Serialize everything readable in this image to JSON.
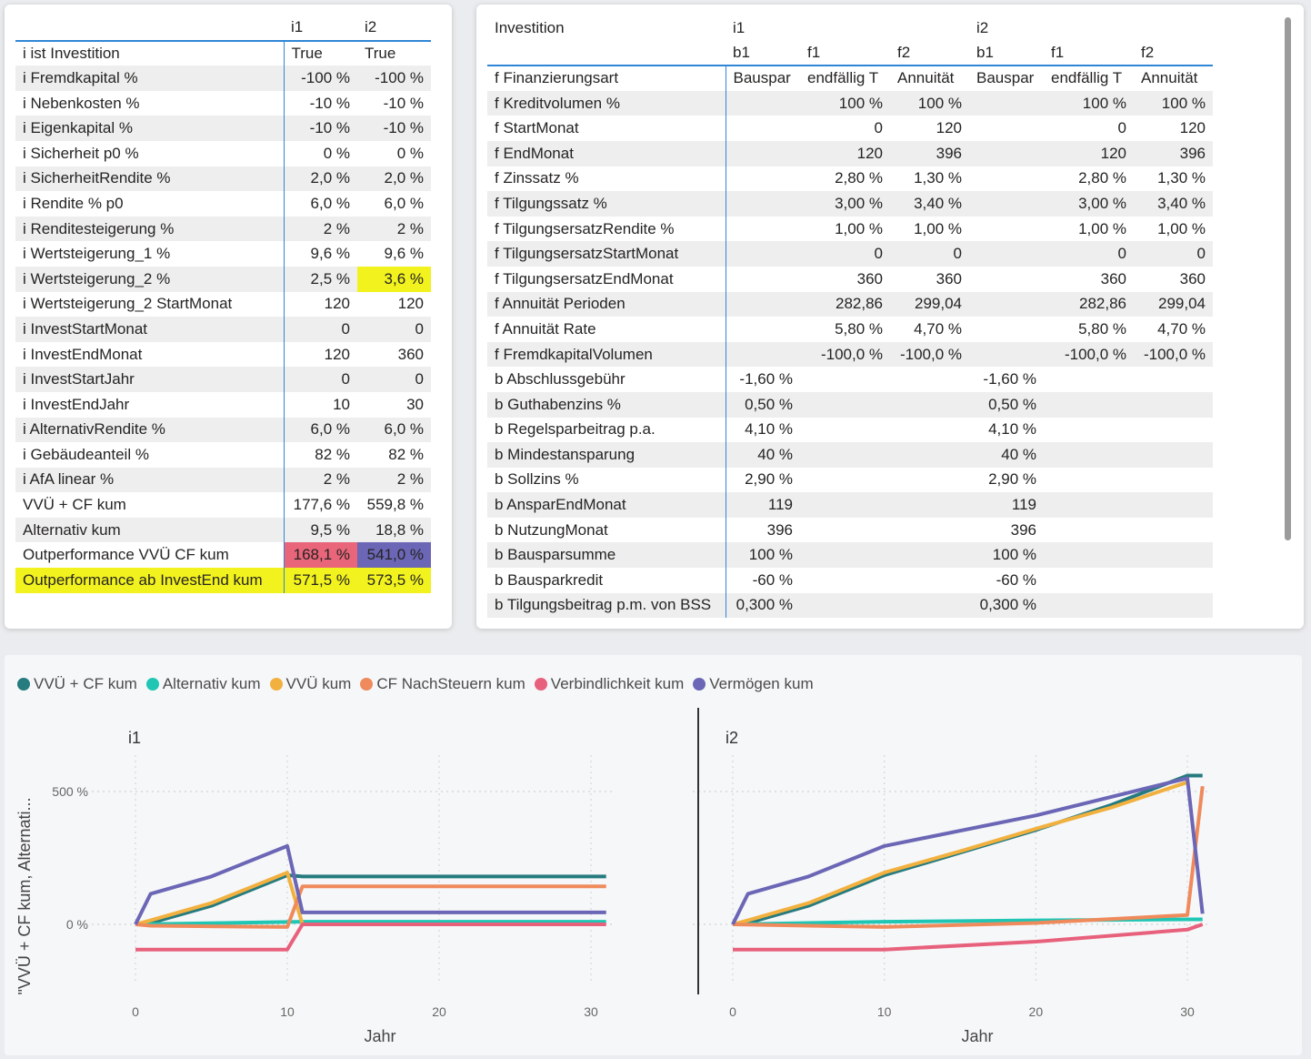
{
  "left_table": {
    "columns": [
      "",
      "i1",
      "i2"
    ],
    "rows": [
      {
        "label": "i ist Investition",
        "i1": "True",
        "i2": "True"
      },
      {
        "label": "i Fremdkapital %",
        "i1": "-100 %",
        "i2": "-100 %"
      },
      {
        "label": "i Nebenkosten %",
        "i1": "-10 %",
        "i2": "-10 %"
      },
      {
        "label": "i Eigenkapital %",
        "i1": "-10 %",
        "i2": "-10 %"
      },
      {
        "label": "i Sicherheit p0 %",
        "i1": "0 %",
        "i2": "0 %"
      },
      {
        "label": "i SicherheitRendite %",
        "i1": "2,0 %",
        "i2": "2,0 %"
      },
      {
        "label": "i Rendite % p0",
        "i1": "6,0 %",
        "i2": "6,0 %"
      },
      {
        "label": "i Renditesteigerung %",
        "i1": "2 %",
        "i2": "2 %"
      },
      {
        "label": "i Wertsteigerung_1 %",
        "i1": "9,6 %",
        "i2": "9,6 %"
      },
      {
        "label": "i Wertsteigerung_2 %",
        "i1": "2,5 %",
        "i2": "3,6 %"
      },
      {
        "label": "i Wertsteigerung_2 StartMonat",
        "i1": "120",
        "i2": "120"
      },
      {
        "label": "i InvestStartMonat",
        "i1": "0",
        "i2": "0"
      },
      {
        "label": "i InvestEndMonat",
        "i1": "120",
        "i2": "360"
      },
      {
        "label": "i InvestStartJahr",
        "i1": "0",
        "i2": "0"
      },
      {
        "label": "i InvestEndJahr",
        "i1": "10",
        "i2": "30"
      },
      {
        "label": "i AlternativRendite %",
        "i1": "6,0 %",
        "i2": "6,0 %"
      },
      {
        "label": "i Gebäudeanteil %",
        "i1": "82 %",
        "i2": "82 %"
      },
      {
        "label": "i AfA linear %",
        "i1": "2 %",
        "i2": "2 %"
      },
      {
        "label": "VVÜ + CF kum",
        "i1": "177,6 %",
        "i2": "559,8 %"
      },
      {
        "label": "Alternativ kum",
        "i1": "9,5 %",
        "i2": "18,8 %"
      },
      {
        "label": "Outperformance VVÜ CF kum",
        "i1": "168,1 %",
        "i2": "541,0 %"
      },
      {
        "label": "Outperformance ab InvestEnd kum",
        "i1": "571,5 %",
        "i2": "573,5 %"
      }
    ],
    "highlight_colors": {
      "yellow": "#f2f21e",
      "red": "#e8657a",
      "purple": "#6b66b5"
    }
  },
  "right_table": {
    "header_row1": [
      "Investition",
      "i1",
      "",
      "",
      "i2",
      "",
      ""
    ],
    "header_row2": [
      "",
      "b1",
      "f1",
      "f2",
      "b1",
      "f1",
      "f2"
    ],
    "rows": [
      [
        "f Finanzierungsart",
        "Bauspar",
        "endfällig T",
        "Annuität",
        "Bauspar",
        "endfällig T",
        "Annuität"
      ],
      [
        "f Kreditvolumen %",
        "",
        "100 %",
        "100 %",
        "",
        "100 %",
        "100 %"
      ],
      [
        "f StartMonat",
        "",
        "0",
        "120",
        "",
        "0",
        "120"
      ],
      [
        "f EndMonat",
        "",
        "120",
        "396",
        "",
        "120",
        "396"
      ],
      [
        "f Zinssatz %",
        "",
        "2,80 %",
        "1,30 %",
        "",
        "2,80 %",
        "1,30 %"
      ],
      [
        "f Tilgungssatz %",
        "",
        "3,00 %",
        "3,40 %",
        "",
        "3,00 %",
        "3,40 %"
      ],
      [
        "f TilgungsersatzRendite %",
        "",
        "1,00 %",
        "1,00 %",
        "",
        "1,00 %",
        "1,00 %"
      ],
      [
        "f TilgungsersatzStartMonat",
        "",
        "0",
        "0",
        "",
        "0",
        "0"
      ],
      [
        "f TilgungsersatzEndMonat",
        "",
        "360",
        "360",
        "",
        "360",
        "360"
      ],
      [
        "f Annuität Perioden",
        "",
        "282,86",
        "299,04",
        "",
        "282,86",
        "299,04"
      ],
      [
        "f Annuität Rate",
        "",
        "5,80 %",
        "4,70 %",
        "",
        "5,80 %",
        "4,70 %"
      ],
      [
        "f FremdkapitalVolumen",
        "",
        "-100,0 %",
        "-100,0 %",
        "",
        "-100,0 %",
        "-100,0 %"
      ],
      [
        "b Abschlussgebühr",
        "-1,60 %",
        "",
        "",
        "-1,60 %",
        "",
        ""
      ],
      [
        "b Guthabenzins %",
        "0,50 %",
        "",
        "",
        "0,50 %",
        "",
        ""
      ],
      [
        "b Regelsparbeitrag p.a.",
        "4,10 %",
        "",
        "",
        "4,10 %",
        "",
        ""
      ],
      [
        "b Mindestansparung",
        "40 %",
        "",
        "",
        "40 %",
        "",
        ""
      ],
      [
        "b Sollzins %",
        "2,90 %",
        "",
        "",
        "2,90 %",
        "",
        ""
      ],
      [
        "b AnsparEndMonat",
        "119",
        "",
        "",
        "119",
        "",
        ""
      ],
      [
        "b NutzungMonat",
        "396",
        "",
        "",
        "396",
        "",
        ""
      ],
      [
        "b Bausparsumme",
        "100 %",
        "",
        "",
        "100 %",
        "",
        ""
      ],
      [
        "b Bausparkredit",
        "-60 %",
        "",
        "",
        "-60 %",
        "",
        ""
      ],
      [
        "b Tilgungsbeitrag p.m. von BSS",
        "0,300 %",
        "",
        "",
        "0,300 %",
        "",
        ""
      ]
    ]
  },
  "chart_data": {
    "type": "line",
    "legend": [
      {
        "name": "VVÜ + CF kum",
        "color": "#267b7f"
      },
      {
        "name": "Alternativ kum",
        "color": "#1fc6b4"
      },
      {
        "name": "VVÜ kum",
        "color": "#f2b13f"
      },
      {
        "name": "CF NachSteuern kum",
        "color": "#ef8a5c"
      },
      {
        "name": "Verbindlichkeit kum",
        "color": "#e8617c"
      },
      {
        "name": "Vermögen kum",
        "color": "#6b66b5"
      }
    ],
    "ylabel": "\"VVÜ + CF kum, Alternati...",
    "xlabel": "Jahr",
    "y_ticks": [
      "0 %",
      "500 %"
    ],
    "x_ticks": [
      "0",
      "10",
      "20",
      "30"
    ],
    "xlim": [
      0,
      31
    ],
    "ylim": [
      -150,
      650
    ],
    "panels": [
      {
        "title": "i1",
        "series": [
          {
            "name": "VVÜ + CF kum",
            "x": [
              0,
              1,
              5,
              10,
              11,
              31
            ],
            "y": [
              0,
              5,
              70,
              185,
              180,
              180
            ]
          },
          {
            "name": "Alternativ kum",
            "x": [
              0,
              10,
              11,
              31
            ],
            "y": [
              0,
              9,
              10,
              10
            ]
          },
          {
            "name": "VVÜ kum",
            "x": [
              0,
              1,
              5,
              10,
              11
            ],
            "y": [
              0,
              15,
              80,
              195,
              0
            ]
          },
          {
            "name": "CF NachSteuern kum",
            "x": [
              0,
              1,
              10,
              11,
              31
            ],
            "y": [
              0,
              -5,
              -10,
              143,
              143
            ]
          },
          {
            "name": "Verbindlichkeit kum",
            "x": [
              0,
              10,
              11,
              31
            ],
            "y": [
              -95,
              -95,
              0,
              0
            ]
          },
          {
            "name": "Vermögen kum",
            "x": [
              0,
              1,
              5,
              10,
              11,
              31
            ],
            "y": [
              0,
              115,
              180,
              295,
              45,
              45
            ]
          }
        ]
      },
      {
        "title": "i2",
        "series": [
          {
            "name": "VVÜ + CF kum",
            "x": [
              0,
              1,
              5,
              10,
              15,
              20,
              25,
              30,
              31
            ],
            "y": [
              0,
              5,
              70,
              185,
              270,
              355,
              450,
              560,
              560
            ]
          },
          {
            "name": "Alternativ kum",
            "x": [
              0,
              10,
              20,
              30,
              31
            ],
            "y": [
              0,
              10,
              15,
              19,
              19
            ]
          },
          {
            "name": "VVÜ kum",
            "x": [
              0,
              1,
              5,
              10,
              15,
              20,
              25,
              30
            ],
            "y": [
              0,
              15,
              80,
              195,
              275,
              360,
              440,
              535
            ]
          },
          {
            "name": "CF NachSteuern kum",
            "x": [
              0,
              10,
              20,
              30,
              31
            ],
            "y": [
              0,
              -10,
              5,
              35,
              520
            ]
          },
          {
            "name": "Verbindlichkeit kum",
            "x": [
              0,
              10,
              20,
              30,
              31
            ],
            "y": [
              -95,
              -95,
              -65,
              -20,
              0
            ]
          },
          {
            "name": "Vermögen kum",
            "x": [
              0,
              1,
              5,
              10,
              20,
              30,
              31
            ],
            "y": [
              0,
              115,
              180,
              295,
              410,
              550,
              40
            ]
          }
        ]
      }
    ]
  }
}
